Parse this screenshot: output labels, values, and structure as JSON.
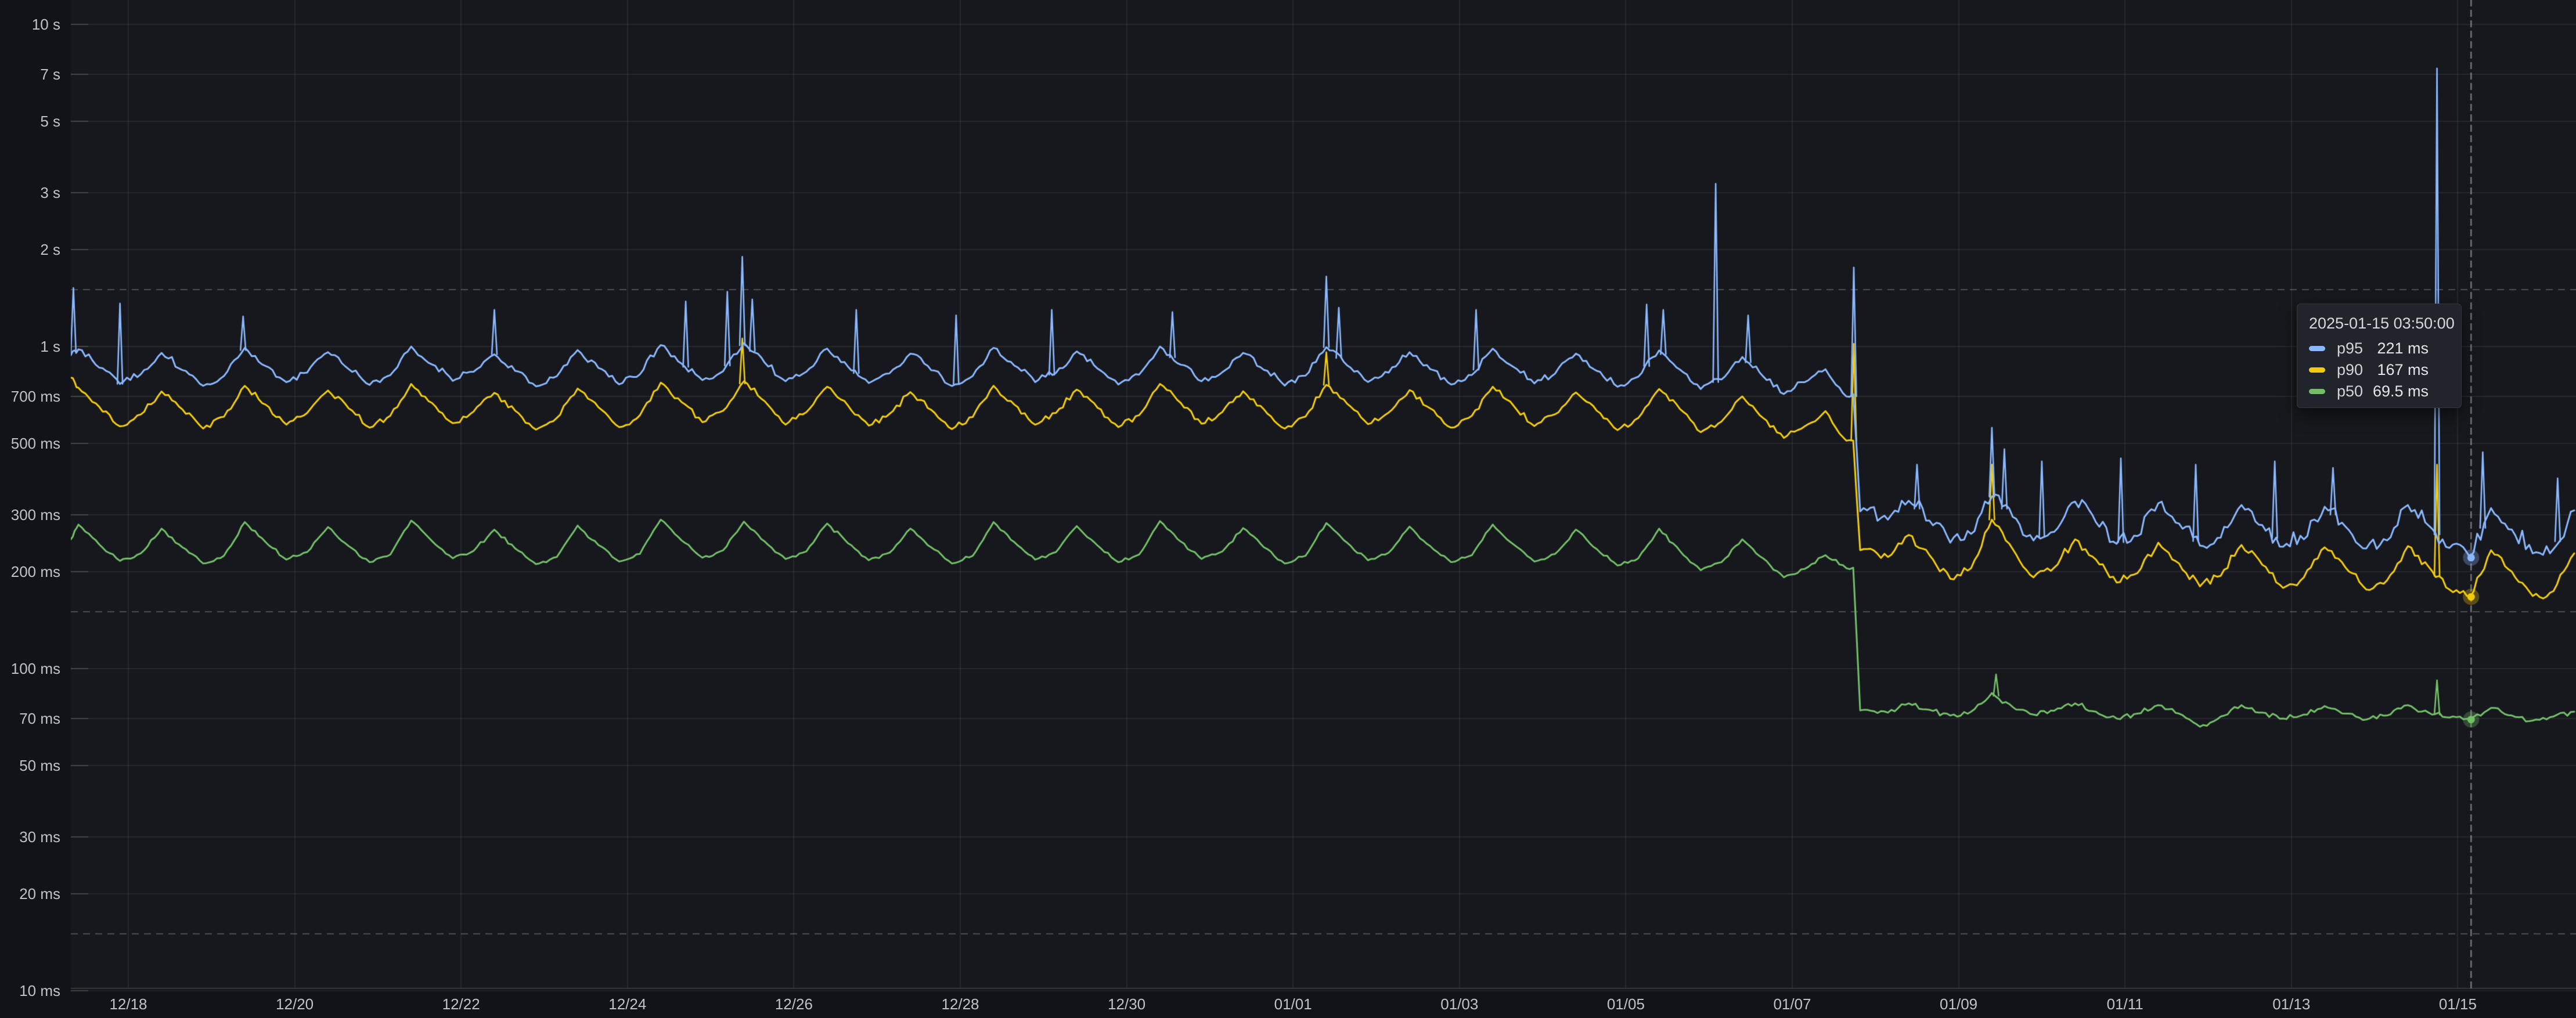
{
  "panel": {
    "background_page": "#121318",
    "background_plot": "#17181d",
    "gridline_color": "rgba(255,255,255,0.065)",
    "minor_gridline_color": "rgba(195,200,212,0.30)",
    "axis_line_color": "rgba(255,255,255,0.14)",
    "crosshair_color": "rgba(185,190,200,0.55)",
    "tick_text_color": "#bfc2ca"
  },
  "axes": {
    "y": {
      "scale": "log10",
      "unit": "time",
      "ticks": [
        {
          "label": "10 s",
          "ms": 10000
        },
        {
          "label": "7 s",
          "ms": 7000
        },
        {
          "label": "5 s",
          "ms": 5000
        },
        {
          "label": "3 s",
          "ms": 3000
        },
        {
          "label": "2 s",
          "ms": 2000
        },
        {
          "label": "1 s",
          "ms": 1000
        },
        {
          "label": "700 ms",
          "ms": 700
        },
        {
          "label": "500 ms",
          "ms": 500
        },
        {
          "label": "300 ms",
          "ms": 300
        },
        {
          "label": "200 ms",
          "ms": 200
        },
        {
          "label": "100 ms",
          "ms": 100
        },
        {
          "label": "70 ms",
          "ms": 70
        },
        {
          "label": "50 ms",
          "ms": 50
        },
        {
          "label": "30 ms",
          "ms": 30
        },
        {
          "label": "20 ms",
          "ms": 20
        },
        {
          "label": "10 ms",
          "ms": 10
        }
      ],
      "minor_dashed_ms": [
        1500,
        150,
        15
      ]
    },
    "x": {
      "unit": "date",
      "ticks": [
        {
          "label": "12/18",
          "day": 1
        },
        {
          "label": "12/20",
          "day": 3
        },
        {
          "label": "12/22",
          "day": 5
        },
        {
          "label": "12/24",
          "day": 7
        },
        {
          "label": "12/26",
          "day": 9
        },
        {
          "label": "12/28",
          "day": 11
        },
        {
          "label": "12/30",
          "day": 13
        },
        {
          "label": "01/01",
          "day": 15
        },
        {
          "label": "01/03",
          "day": 17
        },
        {
          "label": "01/05",
          "day": 19
        },
        {
          "label": "01/07",
          "day": 21
        },
        {
          "label": "01/09",
          "day": 23
        },
        {
          "label": "01/11",
          "day": 25
        },
        {
          "label": "01/13",
          "day": 27
        },
        {
          "label": "01/15",
          "day": 29
        }
      ]
    }
  },
  "chart_data": {
    "type": "line",
    "title": "",
    "x_unit": "days since 2024-12-17 00:00",
    "y_unit": "ms",
    "ylim_ms": [
      10,
      10000
    ],
    "x_first": 0.31,
    "x_start": 0.4,
    "x_step": 0.25,
    "notes": "Latency percentiles, daily oscillation; step drop on 01/07 ~19:00; sampled every 6h at phases peak/fall/trough/near-trough",
    "series": [
      {
        "name": "p95",
        "color": "#8AB8FF",
        "values": [
          940,
          980,
          860,
          765,
          820,
          955,
          845,
          755,
          810,
          990,
          870,
          775,
          830,
          960,
          850,
          760,
          815,
          1000,
          880,
          782,
          835,
          945,
          840,
          752,
          808,
          975,
          858,
          763,
          820,
          1010,
          885,
          786,
          838,
          1025,
          890,
          780,
          835,
          985,
          866,
          770,
          825,
          950,
          844,
          754,
          810,
          990,
          872,
          775,
          828,
          965,
          854,
          762,
          818,
          1000,
          878,
          780,
          832,
          955,
          846,
          756,
          812,
          995,
          874,
          776,
          830,
          960,
          850,
          762,
          816,
          985,
          864,
          768,
          824,
          950,
          840,
          750,
          806,
          972,
          848,
          738,
          790,
          928,
          808,
          712,
          775,
          850,
          700,
          310,
          290,
          332,
          288,
          246,
          262,
          342,
          296,
          250,
          266,
          330,
          285,
          244,
          258,
          326,
          282,
          241,
          255,
          322,
          279,
          239,
          252,
          318,
          276,
          236,
          250,
          322,
          278,
          237,
          221,
          315,
          270,
          228,
          235,
          310
        ],
        "spikes": [
          [
            0.34,
            1520
          ],
          [
            0.9,
            1360
          ],
          [
            2.38,
            1240
          ],
          [
            5.4,
            1300
          ],
          [
            7.7,
            1380
          ],
          [
            8.2,
            1480
          ],
          [
            8.38,
            1900
          ],
          [
            8.5,
            1400
          ],
          [
            9.75,
            1300
          ],
          [
            10.95,
            1250
          ],
          [
            12.1,
            1300
          ],
          [
            13.55,
            1280
          ],
          [
            15.4,
            1650
          ],
          [
            15.55,
            1320
          ],
          [
            17.2,
            1300
          ],
          [
            19.25,
            1350
          ],
          [
            19.45,
            1300
          ],
          [
            20.08,
            3200
          ],
          [
            20.47,
            1250
          ],
          [
            21.74,
            1760
          ],
          [
            22.5,
            430
          ],
          [
            23.4,
            560
          ],
          [
            23.55,
            480
          ],
          [
            24.0,
            440
          ],
          [
            24.95,
            450
          ],
          [
            25.85,
            430
          ],
          [
            26.8,
            440
          ],
          [
            27.5,
            420
          ],
          [
            28.75,
            7300
          ],
          [
            29.3,
            470
          ],
          [
            30.2,
            390
          ]
        ]
      },
      {
        "name": "p90",
        "color": "#F2CC0C",
        "values": [
          800,
          745,
          650,
          565,
          615,
          725,
          638,
          556,
          605,
          755,
          660,
          572,
          622,
          730,
          642,
          560,
          610,
          765,
          668,
          578,
          628,
          718,
          632,
          552,
          600,
          740,
          648,
          562,
          612,
          772,
          672,
          582,
          632,
          780,
          676,
          572,
          625,
          750,
          656,
          568,
          618,
          722,
          636,
          554,
          604,
          755,
          660,
          572,
          622,
          735,
          645,
          562,
          612,
          765,
          668,
          576,
          626,
          726,
          638,
          556,
          606,
          760,
          664,
          574,
          624,
          732,
          642,
          560,
          610,
          750,
          655,
          566,
          616,
          720,
          632,
          550,
          600,
          738,
          640,
          542,
          585,
          700,
          600,
          520,
          565,
          630,
          510,
          235,
          222,
          260,
          225,
          190,
          205,
          290,
          235,
          192,
          206,
          252,
          218,
          185,
          198,
          246,
          212,
          180,
          194,
          242,
          210,
          178,
          192,
          238,
          206,
          176,
          188,
          240,
          207,
          176,
          167,
          233,
          200,
          168,
          174,
          228
        ],
        "spikes": [
          [
            8.38,
            1060
          ],
          [
            15.4,
            960
          ],
          [
            21.74,
            1020
          ],
          [
            23.4,
            430
          ],
          [
            28.75,
            430
          ]
        ]
      },
      {
        "name": "p50",
        "color": "#73BF69",
        "values": [
          252,
          280,
          243,
          216,
          228,
          272,
          238,
          212,
          224,
          285,
          247,
          218,
          230,
          275,
          240,
          214,
          226,
          288,
          249,
          220,
          232,
          270,
          236,
          211,
          222,
          278,
          242,
          215,
          227,
          290,
          250,
          221,
          233,
          286,
          248,
          219,
          231,
          282,
          245,
          217,
          229,
          272,
          238,
          212,
          224,
          285,
          247,
          218,
          230,
          277,
          241,
          214,
          226,
          287,
          248,
          219,
          231,
          273,
          238,
          212,
          224,
          283,
          246,
          217,
          229,
          276,
          240,
          214,
          225,
          280,
          243,
          215,
          227,
          270,
          235,
          209,
          220,
          272,
          232,
          202,
          214,
          252,
          220,
          192,
          204,
          225,
          205,
          74.5,
          73,
          78,
          74.5,
          71.5,
          73.5,
          84,
          76,
          72,
          74,
          78,
          73.5,
          70,
          72.5,
          77,
          72.5,
          66,
          71,
          77,
          73,
          70,
          72,
          76.5,
          72.5,
          69.5,
          71.5,
          77,
          73,
          70.5,
          69.5,
          75.5,
          71.5,
          69,
          71,
          73.5
        ],
        "spikes": [
          [
            23.45,
            96
          ],
          [
            28.75,
            92
          ]
        ]
      }
    ]
  },
  "crosshair": {
    "x_days": 29.1597,
    "time_label": "2025-01-15 03:50:00"
  },
  "tooltip": {
    "title": "2025-01-15 03:50:00",
    "rows": [
      {
        "series": "p95",
        "value": "221 ms",
        "value_ms": 221,
        "color": "#8AB8FF"
      },
      {
        "series": "p90",
        "value": "167 ms",
        "value_ms": 167,
        "color": "#F2CC0C"
      },
      {
        "series": "p50",
        "value": "69.5 ms",
        "value_ms": 69.5,
        "color": "#73BF69"
      }
    ]
  }
}
